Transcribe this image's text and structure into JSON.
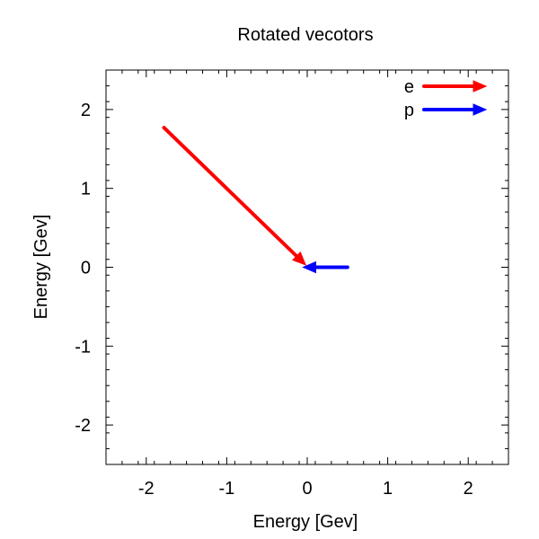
{
  "chart_data": {
    "type": "vector",
    "title": "Rotated vecotors",
    "xlabel": "Energy [Gev]",
    "ylabel": "Energy [Gev]",
    "xlim": [
      -2.5,
      2.5
    ],
    "ylim": [
      -2.5,
      2.5
    ],
    "xticks": [
      -2,
      -1,
      0,
      1,
      2
    ],
    "yticks": [
      -2,
      -1,
      0,
      1,
      2
    ],
    "minor_tick_step": 0.2,
    "grid": false,
    "legend_position": "top-right",
    "series": [
      {
        "name": "e",
        "color": "#ff0000",
        "vectors": [
          {
            "from": [
              -1.78,
              1.77
            ],
            "to": [
              -0.02,
              0.03
            ]
          }
        ]
      },
      {
        "name": "p",
        "color": "#0000ff",
        "vectors": [
          {
            "from": [
              0.5,
              0.0
            ],
            "to": [
              -0.05,
              0.0
            ]
          }
        ]
      }
    ]
  }
}
